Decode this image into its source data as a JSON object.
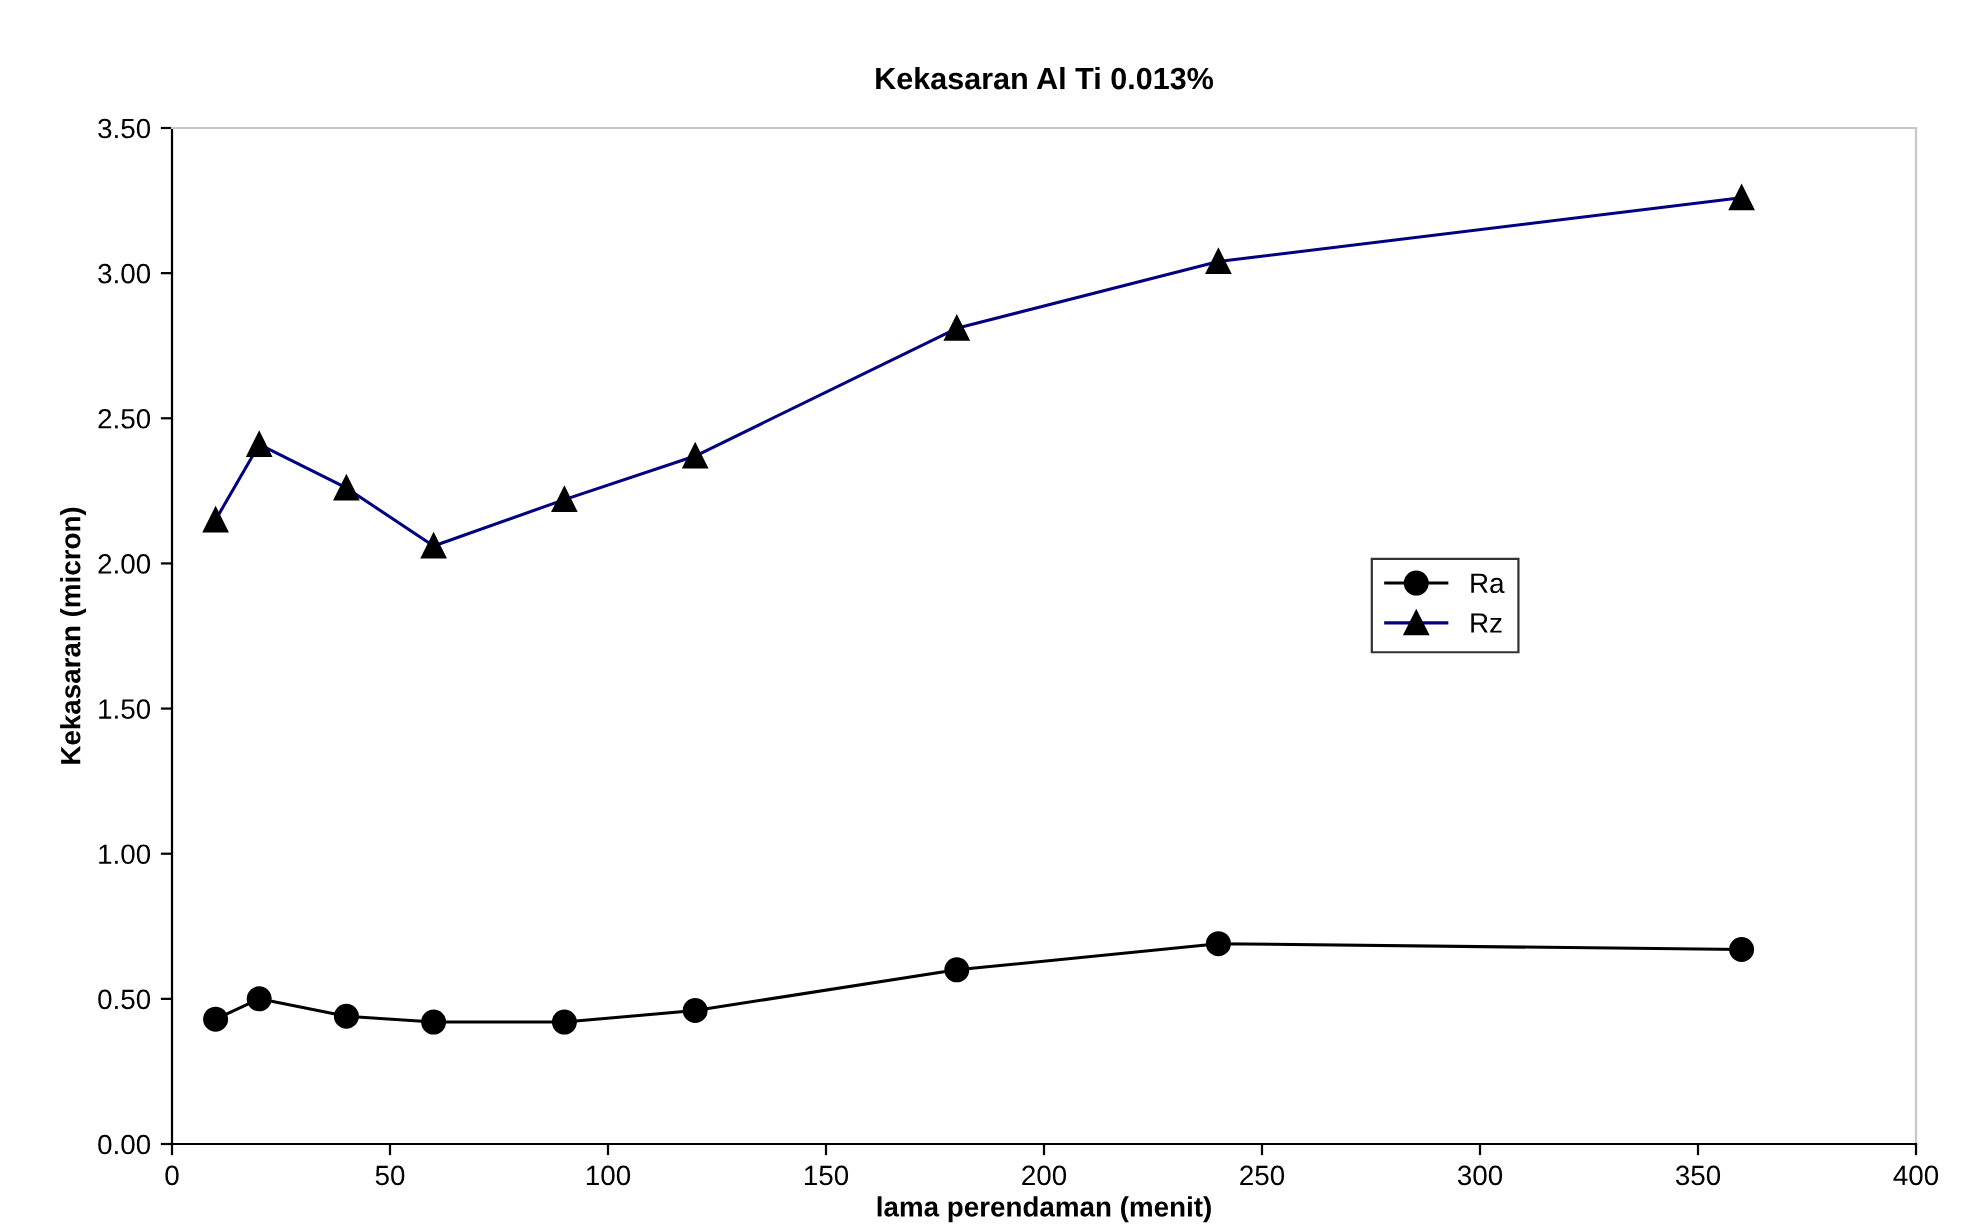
{
  "chart_data": {
    "type": "line",
    "title": "Kekasaran Al Ti 0.013%",
    "xlabel": "lama perendaman (menit)",
    "ylabel": "Kekasaran (micron)",
    "x": [
      10,
      20,
      40,
      60,
      90,
      120,
      180,
      240,
      360
    ],
    "series": [
      {
        "name": "Ra",
        "color": "#000000",
        "marker": "circle",
        "values": [
          0.43,
          0.5,
          0.44,
          0.42,
          0.42,
          0.46,
          0.6,
          0.69,
          0.67
        ]
      },
      {
        "name": "Rz",
        "color": "#000080",
        "marker": "triangle",
        "values": [
          2.15,
          2.41,
          2.26,
          2.06,
          2.22,
          2.37,
          2.81,
          3.04,
          3.26
        ]
      }
    ],
    "xlim": [
      0,
      400
    ],
    "xticks": [
      0,
      50,
      100,
      150,
      200,
      250,
      300,
      350,
      400
    ],
    "ylim": [
      0,
      3.5
    ],
    "yticks": [
      {
        "value": 0,
        "label": "0.00"
      },
      {
        "value": 0.5,
        "label": "0.50"
      },
      {
        "value": 1,
        "label": "1.00"
      },
      {
        "value": 1.5,
        "label": "1.50"
      },
      {
        "value": 2,
        "label": "2.00"
      },
      {
        "value": 2.5,
        "label": "2.50"
      },
      {
        "value": 3,
        "label": "3.00"
      },
      {
        "value": 3.5,
        "label": "3.50"
      }
    ],
    "grid": false,
    "legend": "right",
    "line_style": "solid"
  }
}
